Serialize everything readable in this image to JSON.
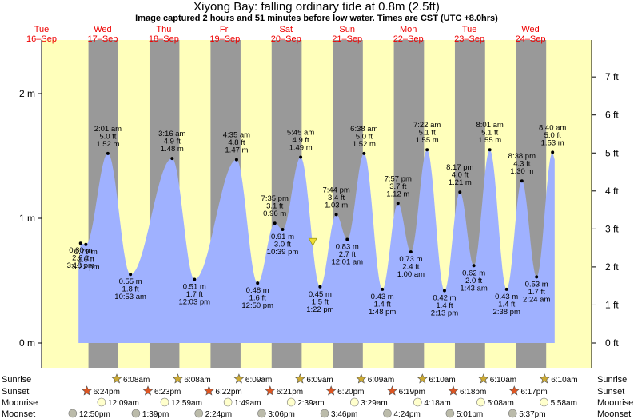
{
  "title": "Xiyong Bay: falling  ordinary tide at 0.8m (2.5ft)",
  "subtitle": "Image captured 2 hours and 51 minutes before low water. Times are CST (UTC +8.0hrs)",
  "colors": {
    "day": "#ffffbb",
    "night": "#999999",
    "tide_fill": "#9fb1ff",
    "date_text": "#ee0000",
    "sun_star": "#ccaa33",
    "sunset_star": "#dd5522",
    "moonrise": "#ffffcc",
    "moonset": "#bbbbaa"
  },
  "days": [
    {
      "dow": "Tue",
      "date": "16–Sep"
    },
    {
      "dow": "Wed",
      "date": "17–Sep"
    },
    {
      "dow": "Thu",
      "date": "18–Sep"
    },
    {
      "dow": "Fri",
      "date": "19–Sep"
    },
    {
      "dow": "Sat",
      "date": "20–Sep"
    },
    {
      "dow": "Sun",
      "date": "21–Sep"
    },
    {
      "dow": "Mon",
      "date": "22–Sep"
    },
    {
      "dow": "Tue",
      "date": "23–Sep"
    },
    {
      "dow": "Wed",
      "date": "24–Sep"
    }
  ],
  "chart_data": {
    "type": "area",
    "title": "Xiyong Bay: falling  ordinary tide at 0.8m (2.5ft)",
    "x_unit": "hours from 16-Sep 00:00",
    "y_left_ticks": [
      "0 m",
      "1 m",
      "2 m"
    ],
    "y_right_ticks": [
      "0 ft",
      "1 ft",
      "2 ft",
      "3 ft",
      "4 ft",
      "5 ft",
      "6 ft",
      "7 ft"
    ],
    "current_level_m": 0.8,
    "tide_events": [
      {
        "t": 15.3,
        "time": "3:18 pm",
        "ft": "2.6 ft",
        "m": "0.80 m",
        "h": 0.8,
        "type": "low"
      },
      {
        "t": 17.37,
        "time": "5:22 pm",
        "ft": "2.6 ft",
        "m": "0.79 m",
        "h": 0.79,
        "type": "low"
      },
      {
        "t": 26.02,
        "time": "2:01 am",
        "ft": "5.0 ft",
        "m": "1.52 m",
        "h": 1.52,
        "type": "high"
      },
      {
        "t": 34.88,
        "time": "10:53 am",
        "ft": "1.8 ft",
        "m": "0.55 m",
        "h": 0.55,
        "type": "low"
      },
      {
        "t": 51.27,
        "time": "3:16 am",
        "ft": "4.9 ft",
        "m": "1.48 m",
        "h": 1.48,
        "type": "high"
      },
      {
        "t": 60.05,
        "time": "12:03 pm",
        "ft": "1.7 ft",
        "m": "0.51 m",
        "h": 0.51,
        "type": "low"
      },
      {
        "t": 76.58,
        "time": "4:35 am",
        "ft": "4.8 ft",
        "m": "1.47 m",
        "h": 1.47,
        "type": "high"
      },
      {
        "t": 84.83,
        "time": "12:50 pm",
        "ft": "1.6 ft",
        "m": "0.48 m",
        "h": 0.48,
        "type": "low"
      },
      {
        "t": 91.58,
        "time": "7:35 pm",
        "ft": "3.1 ft",
        "m": "0.96 m",
        "h": 0.96,
        "type": "high"
      },
      {
        "t": 94.65,
        "time": "10:39 pm",
        "ft": "3.0 ft",
        "m": "0.91 m",
        "h": 0.91,
        "type": "low"
      },
      {
        "t": 101.75,
        "time": "5:45 am",
        "ft": "4.9 ft",
        "m": "1.49 m",
        "h": 1.49,
        "type": "high"
      },
      {
        "t": 109.37,
        "time": "1:22 pm",
        "ft": "1.5 ft",
        "m": "0.45 m",
        "h": 0.45,
        "type": "low"
      },
      {
        "t": 115.73,
        "time": "7:44 pm",
        "ft": "3.4 ft",
        "m": "1.03 m",
        "h": 1.03,
        "type": "high"
      },
      {
        "t": 120.02,
        "time": "12:01 am",
        "ft": "2.7 ft",
        "m": "0.83 m",
        "h": 0.83,
        "type": "low"
      },
      {
        "t": 126.63,
        "time": "6:38 am",
        "ft": "5.0 ft",
        "m": "1.52 m",
        "h": 1.52,
        "type": "high"
      },
      {
        "t": 133.8,
        "time": "1:48 pm",
        "ft": "1.4 ft",
        "m": "0.43 m",
        "h": 0.43,
        "type": "low"
      },
      {
        "t": 139.95,
        "time": "7:57 pm",
        "ft": "3.7 ft",
        "m": "1.12 m",
        "h": 1.12,
        "type": "high"
      },
      {
        "t": 145.0,
        "time": "1:00 am",
        "ft": "2.4 ft",
        "m": "0.73 m",
        "h": 0.73,
        "type": "low"
      },
      {
        "t": 151.37,
        "time": "7:22 am",
        "ft": "5.1 ft",
        "m": "1.55 m",
        "h": 1.55,
        "type": "high"
      },
      {
        "t": 158.22,
        "time": "2:13 pm",
        "ft": "1.4 ft",
        "m": "0.42 m",
        "h": 0.42,
        "type": "low"
      },
      {
        "t": 164.28,
        "time": "8:17 pm",
        "ft": "4.0 ft",
        "m": "1.21 m",
        "h": 1.21,
        "type": "high"
      },
      {
        "t": 169.72,
        "time": "1:43 am",
        "ft": "2.0 ft",
        "m": "0.62 m",
        "h": 0.62,
        "type": "low"
      },
      {
        "t": 176.02,
        "time": "8:01 am",
        "ft": "5.1 ft",
        "m": "1.55 m",
        "h": 1.55,
        "type": "high"
      },
      {
        "t": 182.63,
        "time": "2:38 pm",
        "ft": "1.4 ft",
        "m": "0.43 m",
        "h": 0.43,
        "type": "low"
      },
      {
        "t": 188.63,
        "time": "8:38 pm",
        "ft": "4.3 ft",
        "m": "1.30 m",
        "h": 1.3,
        "type": "high"
      },
      {
        "t": 194.4,
        "time": "2:24 am",
        "ft": "1.7 ft",
        "m": "0.53 m",
        "h": 0.53,
        "type": "low"
      },
      {
        "t": 200.67,
        "time": "8:40 am",
        "ft": "5.0 ft",
        "m": "1.53 m",
        "h": 1.53,
        "type": "high"
      }
    ],
    "nights": [
      [
        18.4,
        30.13
      ],
      [
        42.38,
        54.13
      ],
      [
        66.37,
        78.15
      ],
      [
        90.35,
        102.15
      ],
      [
        114.33,
        126.15
      ],
      [
        138.32,
        150.17
      ],
      [
        162.3,
        174.17
      ],
      [
        186.28,
        198.17
      ]
    ],
    "data_range_hours": [
      14.5,
      201.5
    ]
  },
  "almanac": {
    "labels": {
      "sunrise": "Sunrise",
      "sunset": "Sunset",
      "moonrise": "Moonrise",
      "moonset": "Moonset"
    },
    "sunrise": [
      {
        "t": 30.13,
        "text": "6:08am"
      },
      {
        "t": 54.13,
        "text": "6:08am"
      },
      {
        "t": 78.15,
        "text": "6:09am"
      },
      {
        "t": 102.15,
        "text": "6:09am"
      },
      {
        "t": 126.15,
        "text": "6:09am"
      },
      {
        "t": 150.17,
        "text": "6:10am"
      },
      {
        "t": 174.17,
        "text": "6:10am"
      },
      {
        "t": 198.17,
        "text": "6:10am"
      }
    ],
    "sunset": [
      {
        "t": 18.4,
        "text": "6:24pm"
      },
      {
        "t": 42.38,
        "text": "6:23pm"
      },
      {
        "t": 66.37,
        "text": "6:22pm"
      },
      {
        "t": 90.35,
        "text": "6:21pm"
      },
      {
        "t": 114.33,
        "text": "6:20pm"
      },
      {
        "t": 138.32,
        "text": "6:19pm"
      },
      {
        "t": 162.3,
        "text": "6:18pm"
      },
      {
        "t": 186.28,
        "text": "6:17pm"
      }
    ],
    "moonrise": [
      {
        "t": 24.15,
        "text": "12:09am"
      },
      {
        "t": 48.98,
        "text": "12:59am"
      },
      {
        "t": 73.82,
        "text": "1:49am"
      },
      {
        "t": 98.65,
        "text": "2:39am"
      },
      {
        "t": 123.48,
        "text": "3:29am"
      },
      {
        "t": 148.3,
        "text": "4:18am"
      },
      {
        "t": 173.13,
        "text": "5:08am"
      },
      {
        "t": 197.97,
        "text": "5:58am"
      }
    ],
    "moonset": [
      {
        "t": 12.83,
        "text": "12:50pm"
      },
      {
        "t": 37.65,
        "text": "1:39pm"
      },
      {
        "t": 62.4,
        "text": "2:24pm"
      },
      {
        "t": 87.1,
        "text": "3:06pm"
      },
      {
        "t": 111.77,
        "text": "3:46pm"
      },
      {
        "t": 136.4,
        "text": "4:24pm"
      },
      {
        "t": 161.02,
        "text": "5:01pm"
      },
      {
        "t": 185.62,
        "text": "5:37pm"
      }
    ]
  }
}
